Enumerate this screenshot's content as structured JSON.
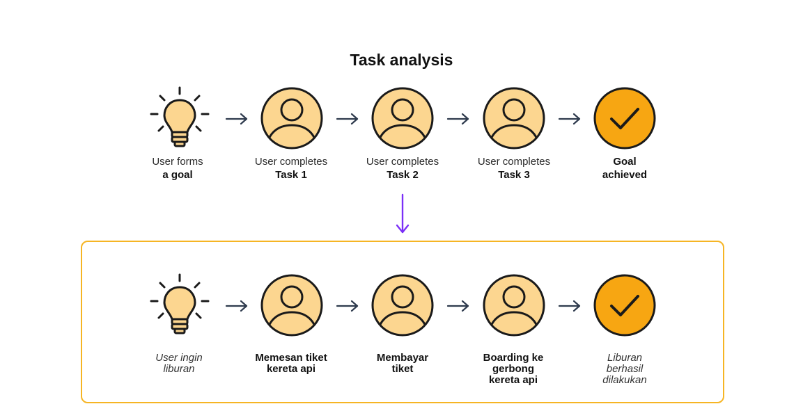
{
  "title": "Task analysis",
  "colors": {
    "accent": "#f6b524",
    "icon_fill": "#fcd690",
    "check_fill": "#f7a612",
    "arrow": "#2e3a4d",
    "down_arrow": "#7b2ff7"
  },
  "top_row": [
    {
      "icon": "lightbulb-icon",
      "line1": "User forms",
      "line2": "a goal"
    },
    {
      "icon": "user-icon",
      "line1": "User completes",
      "line2": "Task 1"
    },
    {
      "icon": "user-icon",
      "line1": "User completes",
      "line2": "Task 2"
    },
    {
      "icon": "user-icon",
      "line1": "User completes",
      "line2": "Task 3"
    },
    {
      "icon": "checkmark-icon",
      "line1": "Goal",
      "line2": "achieved"
    }
  ],
  "bottom_row": [
    {
      "icon": "lightbulb-icon",
      "lines": [
        "User ingin",
        "liburan"
      ]
    },
    {
      "icon": "user-icon",
      "lines": [
        "Memesan tiket",
        "kereta api"
      ]
    },
    {
      "icon": "user-icon",
      "lines": [
        "Membayar",
        "tiket"
      ]
    },
    {
      "icon": "user-icon",
      "lines": [
        "Boarding ke",
        "gerbong",
        "kereta api"
      ]
    },
    {
      "icon": "checkmark-icon",
      "lines": [
        "Liburan",
        "berhasil",
        "dilakukan"
      ]
    }
  ]
}
